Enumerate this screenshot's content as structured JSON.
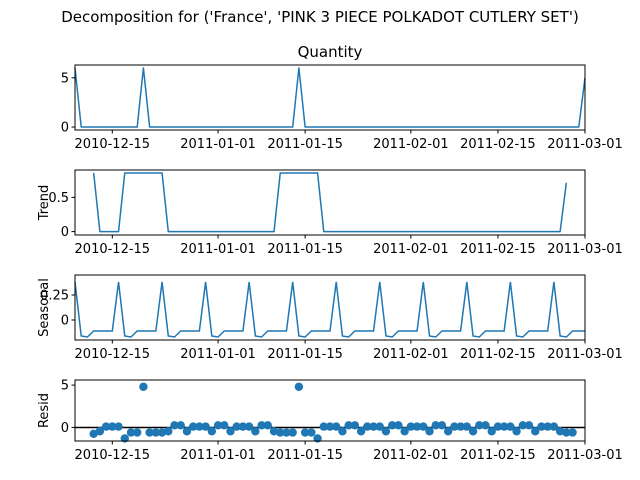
{
  "figure": {
    "title": "Decomposition for ('France', 'PINK 3 PIECE POLKADOT CUTLERY SET')"
  },
  "chart_data": [
    {
      "type": "line",
      "panel": "observed",
      "title": "Quantity",
      "ylabel": "",
      "xlabel": "",
      "x_start": "2010-12-09",
      "x_end": "2011-03-01",
      "xlim": [
        "2010-12-09",
        "2011-03-01"
      ],
      "xtick_labels": [
        "2010-12-15",
        "2011-01-01",
        "2011-01-15",
        "2011-02-01",
        "2011-02-15",
        "2011-03-01"
      ],
      "ylim": [
        -0.3,
        6.3
      ],
      "yticks": [
        0,
        5
      ],
      "color": "#1f77b4",
      "series": [
        {
          "points": [
            [
              "2010-12-09",
              6
            ],
            [
              "2010-12-10",
              0
            ],
            [
              "2010-12-19",
              0
            ],
            [
              "2010-12-20",
              6
            ],
            [
              "2010-12-21",
              0
            ],
            [
              "2011-01-13",
              0
            ],
            [
              "2011-01-14",
              6
            ],
            [
              "2011-01-15",
              0
            ],
            [
              "2011-02-28",
              0
            ],
            [
              "2011-03-01",
              5
            ]
          ]
        }
      ]
    },
    {
      "type": "line",
      "panel": "trend",
      "title": "",
      "ylabel": "Trend",
      "xlabel": "",
      "xlim": [
        "2010-12-09",
        "2011-03-01"
      ],
      "xtick_labels": [
        "2010-12-15",
        "2011-01-01",
        "2011-01-15",
        "2011-02-01",
        "2011-02-15",
        "2011-03-01"
      ],
      "ylim": [
        -0.05,
        0.9
      ],
      "yticks": [
        0.0,
        0.5
      ],
      "color": "#1f77b4",
      "series": [
        {
          "points": [
            [
              "2010-12-12",
              0.857
            ],
            [
              "2010-12-13",
              0
            ],
            [
              "2010-12-16",
              0
            ],
            [
              "2010-12-17",
              0.857
            ],
            [
              "2010-12-23",
              0.857
            ],
            [
              "2010-12-24",
              0
            ],
            [
              "2011-01-10",
              0
            ],
            [
              "2011-01-11",
              0.857
            ],
            [
              "2011-01-17",
              0.857
            ],
            [
              "2011-01-18",
              0
            ],
            [
              "2011-02-25",
              0
            ],
            [
              "2011-02-26",
              0.714
            ]
          ]
        }
      ]
    },
    {
      "type": "line",
      "panel": "seasonal",
      "title": "",
      "ylabel": "Seasonal",
      "xlabel": "",
      "xlim": [
        "2010-12-09",
        "2011-03-01"
      ],
      "xtick_labels": [
        "2010-12-15",
        "2011-01-01",
        "2011-01-15",
        "2011-02-01",
        "2011-02-15",
        "2011-03-01"
      ],
      "ylim": [
        -0.2,
        0.45
      ],
      "yticks": [
        0.0,
        0.25
      ],
      "color": "#1f77b4",
      "period": 7,
      "pattern": [
        0.38,
        -0.16,
        -0.17,
        -0.11,
        -0.11,
        -0.11,
        -0.11
      ]
    },
    {
      "type": "scatter",
      "panel": "resid",
      "title": "",
      "ylabel": "Resid",
      "xlabel": "",
      "xlim": [
        "2010-12-09",
        "2011-03-01"
      ],
      "xtick_labels": [
        "2010-12-15",
        "2011-01-01",
        "2011-01-15",
        "2011-02-01",
        "2011-02-15",
        "2011-03-01"
      ],
      "ylim": [
        -1.6,
        5.6
      ],
      "yticks": [
        0,
        5
      ],
      "hline": 0,
      "color": "#1f77b4",
      "x_start": "2010-12-12",
      "values": [
        -0.75,
        -0.45,
        0.1,
        0.1,
        0.1,
        -1.3,
        -0.6,
        -0.6,
        4.8,
        -0.6,
        -0.6,
        -0.6,
        -0.45,
        0.25,
        0.25,
        -0.45,
        0.1,
        0.1,
        0.1,
        -0.45,
        0.25,
        0.25,
        -0.45,
        0.1,
        0.1,
        0.1,
        -0.45,
        0.25,
        0.25,
        -0.45,
        -0.6,
        -0.6,
        -0.6,
        4.8,
        -0.6,
        -0.6,
        -1.3,
        0.1,
        0.1,
        0.1,
        -0.45,
        0.25,
        0.25,
        -0.45,
        0.1,
        0.1,
        0.1,
        -0.45,
        0.25,
        0.25,
        -0.45,
        0.1,
        0.1,
        0.1,
        -0.45,
        0.25,
        0.25,
        -0.45,
        0.1,
        0.1,
        0.1,
        -0.45,
        0.25,
        0.25,
        -0.45,
        0.1,
        0.1,
        0.1,
        -0.45,
        0.25,
        0.25,
        -0.45,
        0.1,
        0.1,
        0.1,
        -0.45,
        -0.6,
        -0.6
      ]
    }
  ]
}
